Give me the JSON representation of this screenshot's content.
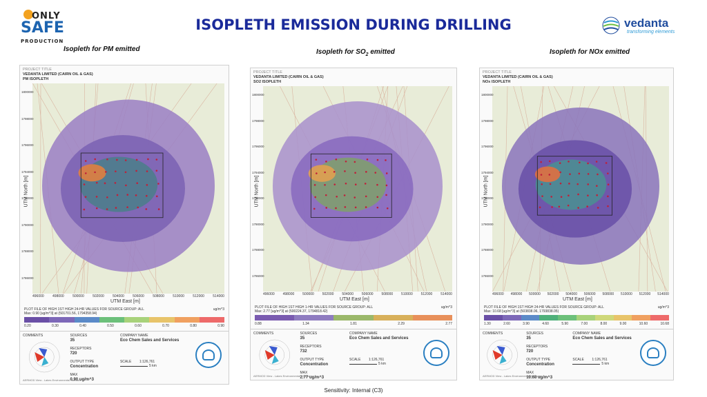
{
  "page": {
    "title": "ISOPLETH EMISSION DURING DRILLING",
    "footer": "Sensitivity: Internal (C3)"
  },
  "logos": {
    "left": {
      "line1": "ONLY",
      "line2": "SAFE",
      "line3": "PRODUCTION"
    },
    "right": {
      "name": "vedanta",
      "tagline": "transforming elements"
    }
  },
  "panels": [
    {
      "caption": "Isopleth for PM emitted",
      "project_label": "PROJECT TITLE",
      "project": "VEDANTA LIMITED (CAIRN OIL & GAS)",
      "map_title": "PM ISOPLETH",
      "x_axis": "UTM East [m]",
      "y_axis": "UTM North [m]",
      "plot_file": "PLOT FILE OF HIGH 1ST HIGH 24-HR VALUES FOR SOURCE GROUP: ALL",
      "max_line": "Max: 0.90 [ug/m^3] at (501701.56, 1794358.94)",
      "unit": "ug/m^3",
      "scale_ticks": [
        "0.20",
        "0.30",
        "0.40",
        "0.50",
        "0.60",
        "0.70",
        "0.80",
        "0.90"
      ],
      "sources": "35",
      "receptors": "720",
      "output_type": "Concentration",
      "company": "Eco Chem Sales and Services",
      "scale": "1:126,761",
      "max": "0.90 ug/m^3"
    },
    {
      "caption_pre": "Isopleth for SO",
      "caption_sub": "2",
      "caption_post": " emitted",
      "project_label": "PROJECT TITLE",
      "project": "VEDANTA LIMITED (CAIRN OIL & GAS)",
      "map_title": "SO2 ISOPLETH",
      "x_axis": "UTM East [m]",
      "y_axis": "UTM North [m]",
      "plot_file": "PLOT FILE OF HIGH 1ST HIGH 1-HR VALUES FOR SOURCE GROUP: ALL",
      "max_line": "Max: 2.77 [ug/m^3] at (500224.37, 1794818.42)",
      "unit": "ug/m^3",
      "scale_ticks": [
        "0.88",
        "1.34",
        "1.81",
        "2.29",
        "2.77"
      ],
      "sources": "35",
      "receptors": "732",
      "output_type": "Concentration",
      "company": "Eco Chem Sales and Services",
      "scale": "1:126,761",
      "max": "2.77 ug/m^3"
    },
    {
      "caption": "Isopleth for NOx emitted",
      "project_label": "PROJECT TITLE",
      "project": "VEDANTA LIMITED (CAIRN OIL & GAS)",
      "map_title": "NOx ISOPLETH",
      "x_axis": "UTM East [m]",
      "y_axis": "UTM North [m]",
      "plot_file": "PLOT FILE OF HIGH 1ST HIGH 24-HR VALUES FOR SOURCE GROUP: ALL",
      "max_line": "Max: 10.68 [ug/m^3] at (503838.06, 1793838.05)",
      "unit": "ug/m^3",
      "scale_ticks": [
        "1.30",
        "2.60",
        "3.90",
        "4.60",
        "5.90",
        "7.00",
        "8.00",
        "9.00",
        "10.60",
        "10.68"
      ],
      "sources": "35",
      "receptors": "720",
      "output_type": "Concentration",
      "company": "Eco Chem Sales and Services",
      "scale": "1:126,761",
      "max": "10.68 ug/m^3"
    }
  ],
  "x_ticks": [
    "496000",
    "498000",
    "500000",
    "502000",
    "504000",
    "506000",
    "508000",
    "510000",
    "512000",
    "514000"
  ],
  "y_ticks": [
    "1800000",
    "1798000",
    "1796000",
    "1794000",
    "1792000",
    "1790000",
    "1788000",
    "1786000"
  ],
  "labels": {
    "sources": "SOURCES",
    "receptors": "RECEPTORS",
    "output_type": "OUTPUT TYPE",
    "company": "COMPANY NAME",
    "scale": "SCALE",
    "max": "MAX",
    "comments": "COMMENTS",
    "km": "5 km",
    "software": "AERMOD View - Lakes Environmental Software"
  },
  "colors": {
    "title": "#1a2a9a",
    "pm_scale": [
      "#6a4fa6",
      "#7d68b8",
      "#5b8ac8",
      "#6cc07a",
      "#a8d27a",
      "#e8c46a",
      "#f0a060",
      "#ee6a6a"
    ],
    "so2_scale": [
      "#7a5bb0",
      "#8f7cc0",
      "#9bb86a",
      "#d8b05a",
      "#e8905a"
    ],
    "nox_scale": [
      "#6a4fa6",
      "#7d68b8",
      "#5b8ac8",
      "#4fb07a",
      "#6cc07a",
      "#a8d27a",
      "#cfd87a",
      "#e8c46a",
      "#f0a060",
      "#ee6a6a"
    ]
  }
}
